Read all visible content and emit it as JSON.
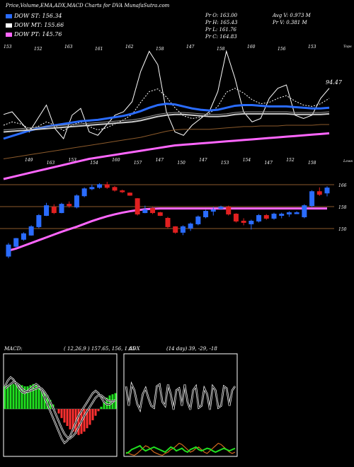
{
  "header": {
    "title": "Price,Volume,EMA,ADX,MACD Charts for DVA MunafaSutra.com",
    "pr_o": "Pr  O: 163.00",
    "pr_h": "Pr  H: 165.43",
    "pr_l": "Pr  L: 161.76",
    "pr_c": "Pr  C: 164.83",
    "avg_v": "Avg V: 0.973 M",
    "pr_v": "Pr  V: 0.381 M"
  },
  "legend": [
    {
      "label": "DOW ST: 156.34",
      "color": "#2a6cff"
    },
    {
      "label": "DOW MT: 155.66",
      "color": "#ffffff"
    },
    {
      "label": "DOW PT: 145.76",
      "color": "#ff66ff"
    }
  ],
  "chart_data": [
    {
      "type": "line",
      "name": "indicator-panel",
      "top_labels": [
        "153",
        "152",
        "163",
        "161",
        "162",
        "158",
        "147",
        "158",
        "160",
        "156",
        "153"
      ],
      "bottom_labels": [
        "149",
        "163",
        "153",
        "154",
        "160",
        "157",
        "147",
        "150",
        "147",
        "153",
        "154",
        "147",
        "152",
        "158"
      ],
      "value_label": "94.47",
      "tops_label": "Tops",
      "lows_label": "Lows",
      "series": [
        {
          "values": [
            56,
            60,
            45,
            30,
            50,
            70,
            35,
            20,
            55,
            65,
            30,
            25,
            40,
            55,
            60,
            75,
            120,
            150,
            130,
            60,
            30,
            25,
            40,
            50,
            60,
            90,
            150,
            110,
            60,
            45,
            50,
            80,
            95,
            100,
            55,
            50,
            55,
            80,
            95
          ]
        },
        {
          "values": [
            40,
            45,
            42,
            35,
            38,
            45,
            40,
            32,
            40,
            45,
            38,
            33,
            36,
            42,
            48,
            56,
            74,
            90,
            94,
            82,
            66,
            54,
            50,
            52,
            57,
            68,
            89,
            95,
            88,
            78,
            72,
            74,
            80,
            84,
            76,
            70,
            68,
            72,
            80
          ]
        },
        {
          "values": [
            20,
            24,
            28,
            32,
            35,
            38,
            40,
            42,
            44,
            46,
            47,
            48,
            50,
            52,
            54,
            57,
            61,
            66,
            70,
            72,
            71,
            68,
            65,
            63,
            62,
            63,
            66,
            69,
            70,
            70,
            69,
            68,
            68,
            68,
            67,
            66,
            65,
            65,
            66
          ]
        },
        {
          "values": [
            30,
            31,
            32,
            33,
            34,
            35,
            36,
            37,
            38,
            39,
            40,
            41,
            42,
            43,
            44,
            45,
            47,
            50,
            53,
            55,
            56,
            56,
            55,
            54,
            53,
            53,
            54,
            56,
            57,
            57,
            57,
            57,
            57,
            57,
            56,
            56,
            56,
            56,
            57
          ]
        },
        {
          "values": [
            -10,
            -8,
            -6,
            -4,
            -2,
            0,
            2,
            4,
            6,
            8,
            10,
            12,
            14,
            16,
            18,
            20,
            22,
            25,
            28,
            31,
            33,
            34,
            34,
            34,
            34,
            35,
            36,
            37,
            38,
            38,
            39,
            39,
            39,
            40,
            40,
            40,
            40,
            41,
            41
          ]
        },
        {
          "values": [
            -40,
            -37,
            -34,
            -31,
            -28,
            -25,
            -22,
            -19,
            -16,
            -13,
            -10,
            -8,
            -6,
            -4,
            -2,
            0,
            2,
            4,
            6,
            8,
            10,
            11,
            12,
            13,
            14,
            15,
            16,
            17,
            18,
            19,
            20,
            21,
            22,
            23,
            24,
            25,
            26,
            27,
            28
          ]
        }
      ]
    },
    {
      "type": "candlestick",
      "name": "price-panel",
      "level_labels": [
        "166",
        "158",
        "150"
      ],
      "candles": [
        {
          "o": 140.5,
          "h": 145.2,
          "l": 139.8,
          "c": 144.5
        },
        {
          "o": 144.0,
          "h": 147.0,
          "l": 143.5,
          "c": 146.8
        },
        {
          "o": 146.5,
          "h": 149.0,
          "l": 146.0,
          "c": 148.5
        },
        {
          "o": 148.0,
          "h": 151.5,
          "l": 147.8,
          "c": 151.0
        },
        {
          "o": 151.0,
          "h": 155.5,
          "l": 150.5,
          "c": 155.0
        },
        {
          "o": 155.0,
          "h": 159.5,
          "l": 154.8,
          "c": 158.5
        },
        {
          "o": 158.0,
          "h": 159.0,
          "l": 155.5,
          "c": 156.0
        },
        {
          "o": 156.0,
          "h": 159.5,
          "l": 155.8,
          "c": 159.0
        },
        {
          "o": 159.0,
          "h": 160.0,
          "l": 157.8,
          "c": 158.5
        },
        {
          "o": 158.0,
          "h": 162.5,
          "l": 157.5,
          "c": 162.0
        },
        {
          "o": 162.0,
          "h": 165.0,
          "l": 161.5,
          "c": 164.5
        },
        {
          "o": 164.5,
          "h": 166.0,
          "l": 164.0,
          "c": 165.0
        },
        {
          "o": 165.0,
          "h": 166.5,
          "l": 164.5,
          "c": 166.0
        },
        {
          "o": 166.0,
          "h": 167.0,
          "l": 164.5,
          "c": 165.0
        },
        {
          "o": 165.0,
          "h": 165.5,
          "l": 163.5,
          "c": 164.0
        },
        {
          "o": 163.8,
          "h": 164.2,
          "l": 163.0,
          "c": 163.5
        },
        {
          "o": 163.0,
          "h": 163.2,
          "l": 162.0,
          "c": 162.2
        },
        {
          "o": 161.0,
          "h": 161.2,
          "l": 155.0,
          "c": 155.5
        },
        {
          "o": 156.0,
          "h": 158.5,
          "l": 155.8,
          "c": 157.0
        },
        {
          "o": 157.5,
          "h": 158.0,
          "l": 155.5,
          "c": 156.0
        },
        {
          "o": 156.0,
          "h": 156.3,
          "l": 154.8,
          "c": 155.0
        },
        {
          "o": 154.0,
          "h": 154.5,
          "l": 150.5,
          "c": 151.0
        },
        {
          "o": 151.0,
          "h": 151.2,
          "l": 148.5,
          "c": 149.0
        },
        {
          "o": 149.0,
          "h": 151.5,
          "l": 148.0,
          "c": 151.0
        },
        {
          "o": 150.5,
          "h": 152.5,
          "l": 149.5,
          "c": 152.0
        },
        {
          "o": 152.0,
          "h": 155.0,
          "l": 151.5,
          "c": 154.5
        },
        {
          "o": 154.5,
          "h": 157.0,
          "l": 154.0,
          "c": 156.5
        },
        {
          "o": 156.5,
          "h": 158.0,
          "l": 155.0,
          "c": 157.0
        },
        {
          "o": 157.5,
          "h": 158.5,
          "l": 157.0,
          "c": 158.0
        },
        {
          "o": 158.0,
          "h": 158.5,
          "l": 155.0,
          "c": 155.5
        },
        {
          "o": 155.5,
          "h": 155.8,
          "l": 152.5,
          "c": 153.0
        },
        {
          "o": 153.0,
          "h": 154.0,
          "l": 151.5,
          "c": 152.5
        },
        {
          "o": 152.0,
          "h": 153.5,
          "l": 150.0,
          "c": 153.0
        },
        {
          "o": 153.0,
          "h": 155.5,
          "l": 152.5,
          "c": 155.0
        },
        {
          "o": 155.0,
          "h": 155.5,
          "l": 153.5,
          "c": 154.0
        },
        {
          "o": 154.0,
          "h": 156.0,
          "l": 153.5,
          "c": 155.5
        },
        {
          "o": 155.0,
          "h": 156.0,
          "l": 154.0,
          "c": 155.5
        },
        {
          "o": 155.5,
          "h": 156.5,
          "l": 154.5,
          "c": 156.0
        },
        {
          "o": 156.0,
          "h": 156.5,
          "l": 155.5,
          "c": 156.0
        },
        {
          "o": 154.5,
          "h": 159.0,
          "l": 154.0,
          "c": 158.5
        },
        {
          "o": 158.5,
          "h": 164.0,
          "l": 158.0,
          "c": 163.5
        },
        {
          "o": 163.5,
          "h": 165.0,
          "l": 162.0,
          "c": 162.5
        },
        {
          "o": 163.0,
          "h": 165.4,
          "l": 161.8,
          "c": 164.8
        }
      ],
      "ema_pink": [
        142.5,
        143.2,
        144.2,
        145.2,
        146.2,
        147.2,
        148.2,
        149.2,
        150.1,
        151.0,
        152.0,
        153.0,
        153.9,
        154.7,
        155.4,
        156.0,
        156.5,
        156.9,
        157.2,
        157.4,
        157.5,
        157.5,
        157.5,
        157.5,
        157.5,
        157.5,
        157.5,
        157.5,
        157.5,
        157.5,
        157.5,
        157.5,
        157.5,
        157.5,
        157.5,
        157.5,
        157.5,
        157.5,
        157.5,
        157.5,
        157.5,
        157.5,
        157.5
      ]
    },
    {
      "type": "bar",
      "name": "macd-panel",
      "label": "MACD:",
      "params": "( 12,26,9 ) 157.65,  156,  1.65",
      "histogram": [
        20,
        21,
        22,
        22,
        23,
        22,
        21,
        20,
        20,
        21,
        22,
        21,
        20,
        18,
        15,
        12,
        8,
        4,
        0,
        -4,
        -8,
        -12,
        -15,
        -18,
        -20,
        -22,
        -23,
        -22,
        -20,
        -17,
        -14,
        -10,
        -6,
        -2,
        2,
        6,
        10,
        12,
        13,
        14
      ],
      "macd_line": [
        20,
        25,
        28,
        26,
        22,
        18,
        15,
        14,
        16,
        18,
        20,
        22,
        20,
        16,
        10,
        4,
        -2,
        -8,
        -14,
        -20,
        -26,
        -30,
        -28,
        -24,
        -18,
        -12,
        -6,
        -2,
        2,
        6,
        10,
        14,
        16,
        14,
        10,
        6,
        4,
        4,
        6,
        8
      ],
      "signal_line": [
        18,
        20,
        22,
        24,
        23,
        21,
        18,
        16,
        15,
        16,
        17,
        18,
        19,
        18,
        15,
        11,
        6,
        1,
        -5,
        -11,
        -17,
        -22,
        -25,
        -26,
        -24,
        -21,
        -16,
        -11,
        -6,
        -2,
        2,
        6,
        10,
        12,
        12,
        10,
        8,
        7,
        7,
        7
      ]
    },
    {
      "type": "line",
      "name": "adx-panel",
      "label": "ADX",
      "params": "(14 day) 39,  -29,  -18",
      "adx_white": [
        80,
        30,
        85,
        70,
        35,
        20,
        60,
        75,
        50,
        30,
        25,
        80,
        85,
        40,
        30,
        85,
        60,
        20,
        70,
        75,
        30,
        85,
        40,
        20,
        70,
        80,
        25,
        30,
        75,
        60,
        20,
        80,
        70,
        25,
        30,
        80,
        75,
        30,
        70,
        80
      ],
      "di_green": [
        8,
        10,
        14,
        16,
        18,
        20,
        15,
        12,
        14,
        16,
        18,
        16,
        14,
        12,
        10,
        14,
        18,
        16,
        12,
        14,
        16,
        12,
        10,
        14,
        16,
        18,
        14,
        12,
        14,
        16,
        15,
        12,
        10,
        12,
        14,
        16,
        14,
        12,
        14,
        16
      ],
      "di_orange": [
        10,
        8,
        6,
        5,
        8,
        12,
        16,
        20,
        18,
        14,
        10,
        8,
        6,
        5,
        8,
        10,
        14,
        16,
        20,
        24,
        22,
        18,
        14,
        10,
        12,
        16,
        18,
        14,
        10,
        8,
        12,
        16,
        20,
        24,
        22,
        18,
        14,
        10,
        8,
        10
      ]
    }
  ]
}
